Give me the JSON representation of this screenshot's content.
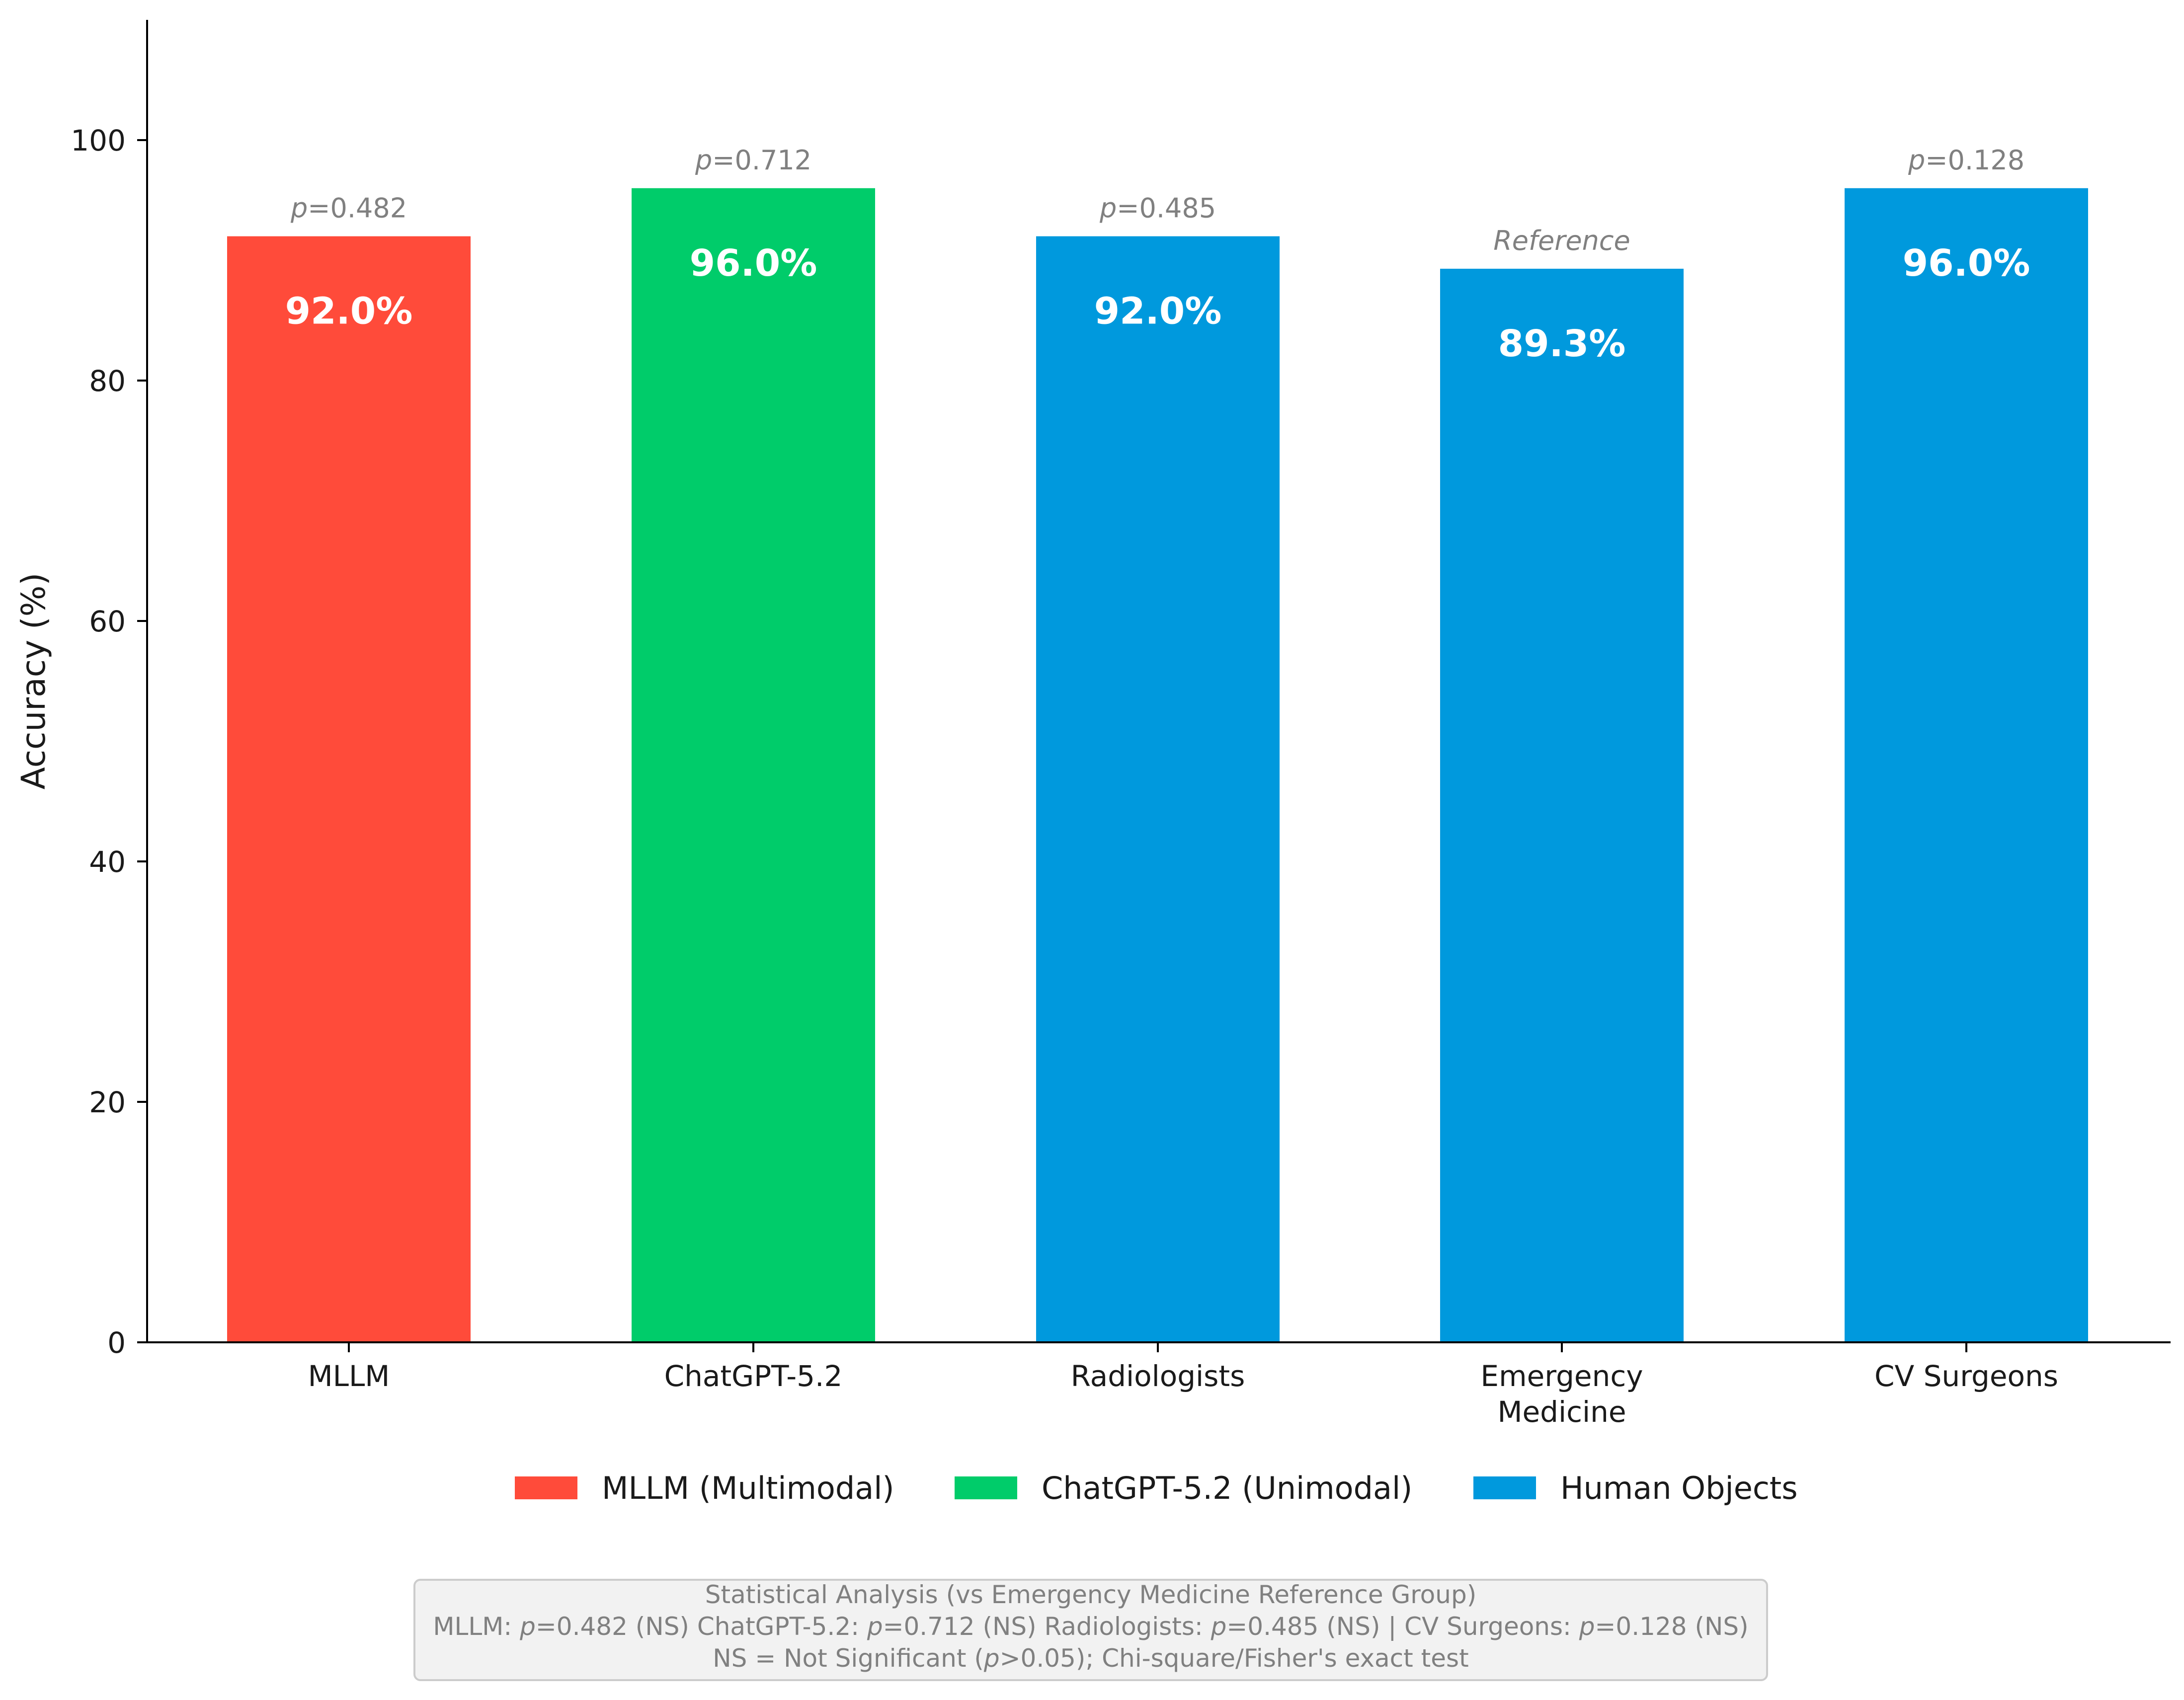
{
  "chart_data": {
    "type": "bar",
    "ylabel": "Accuracy (%)",
    "ylim": [
      0,
      110
    ],
    "yticks": [
      0,
      20,
      40,
      60,
      80,
      100
    ],
    "categories": [
      {
        "lines": [
          "MLLM"
        ]
      },
      {
        "lines": [
          "ChatGPT-5.2"
        ]
      },
      {
        "lines": [
          "Radiologists"
        ]
      },
      {
        "lines": [
          "Emergency",
          "Medicine"
        ]
      },
      {
        "lines": [
          "CV Surgeons"
        ]
      }
    ],
    "values": [
      92.0,
      96.0,
      92.0,
      89.3,
      96.0
    ],
    "value_labels": [
      "92.0%",
      "96.0%",
      "92.0%",
      "89.3%",
      "96.0%"
    ],
    "bar_colors": [
      "#ff4b3a",
      "#00cc6a",
      "#0099dd",
      "#0099dd",
      "#0099dd"
    ],
    "annotations": [
      {
        "p": "p",
        "rest": "=0.482",
        "italic_all": false
      },
      {
        "p": "p",
        "rest": "=0.712",
        "italic_all": false
      },
      {
        "p": "p",
        "rest": "=0.485",
        "italic_all": false
      },
      {
        "p": "",
        "rest": "Reference",
        "italic_all": true
      },
      {
        "p": "p",
        "rest": "=0.128",
        "italic_all": false
      }
    ],
    "legend": {
      "placement": "bottom-center",
      "entries": [
        {
          "label": "MLLM (Multimodal)",
          "color": "#ff4b3a"
        },
        {
          "label": "ChatGPT-5.2 (Unimodal)",
          "color": "#00cc6a"
        },
        {
          "label": "Human Objects",
          "color": "#0099dd"
        }
      ]
    },
    "stats_box": {
      "line1": "Statistical Analysis (vs Emergency Medicine Reference Group)",
      "line2": [
        {
          "t": "MLLM: ",
          "i": false
        },
        {
          "t": "p",
          "i": true
        },
        {
          "t": "=0.482 (NS)   ChatGPT-5.2: ",
          "i": false
        },
        {
          "t": "p",
          "i": true
        },
        {
          "t": "=0.712 (NS)   Radiologists: ",
          "i": false
        },
        {
          "t": "p",
          "i": true
        },
        {
          "t": "=0.485 (NS) | CV Surgeons: ",
          "i": false
        },
        {
          "t": "p",
          "i": true
        },
        {
          "t": "=0.128 (NS)",
          "i": false
        }
      ],
      "line3": [
        {
          "t": "NS = Not Significant (",
          "i": false
        },
        {
          "t": "p",
          "i": true
        },
        {
          "t": ">0.05); Chi-square/Fisher's exact test",
          "i": false
        }
      ]
    }
  }
}
